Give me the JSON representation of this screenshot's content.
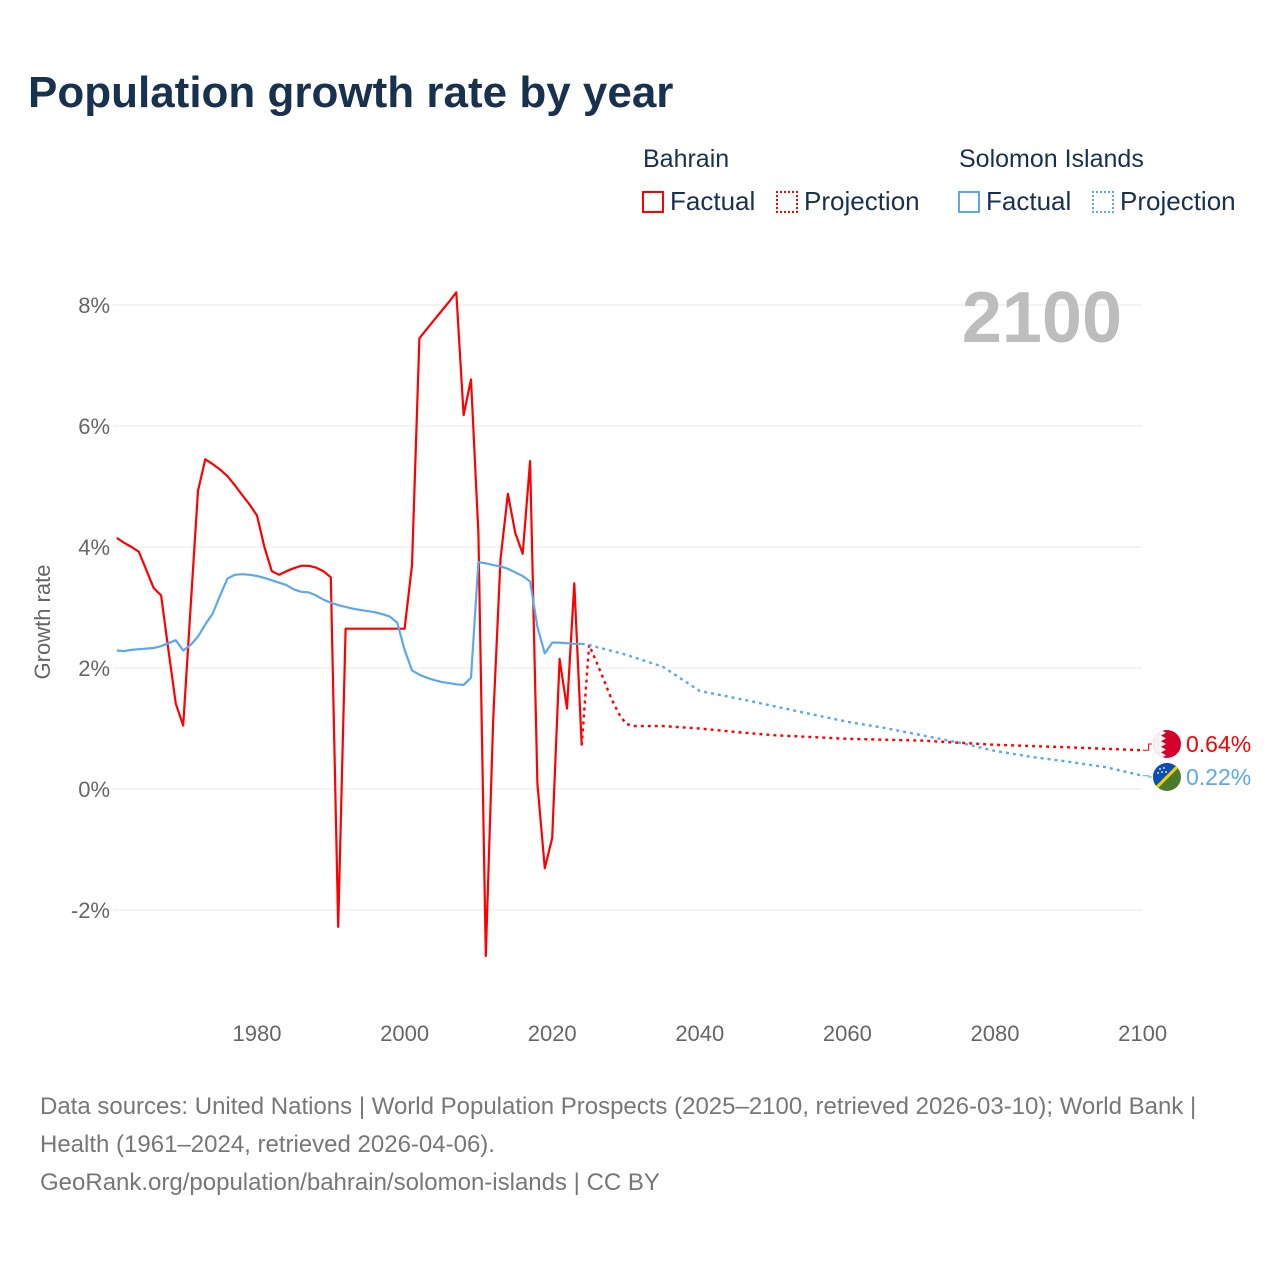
{
  "title": "Population growth rate by year",
  "legend": {
    "groups": [
      {
        "name": "Bahrain",
        "factual": "Factual",
        "projection": "Projection",
        "color": "#ff0000"
      },
      {
        "name": "Solomon Islands",
        "factual": "Factual",
        "projection": "Projection",
        "color": "#5ba8ec"
      }
    ]
  },
  "year_watermark": "2100",
  "footer": {
    "sources": "Data sources: United Nations | World Population Prospects (2025–2100, retrieved 2026-03-10); World Bank | Health (1961–2024, retrieved 2026-04-06).",
    "credit": "GeoRank.org/population/bahrain/solomon-islands | CC BY"
  },
  "chart_data": {
    "type": "line",
    "title": "Population growth rate by year",
    "ylabel": "Growth rate",
    "xlabel": "",
    "xlim": [
      1961,
      2100
    ],
    "ylim": [
      -3.3,
      8.5
    ],
    "x_ticks": [
      1980,
      2000,
      2020,
      2040,
      2060,
      2080,
      2100
    ],
    "y_ticks": [
      {
        "v": 8,
        "label": "8%"
      },
      {
        "v": 6,
        "label": "6%"
      },
      {
        "v": 4,
        "label": "4%"
      },
      {
        "v": 2,
        "label": "2%"
      },
      {
        "v": 0,
        "label": "0%"
      },
      {
        "v": -2,
        "label": "-2%"
      }
    ],
    "grid": true,
    "series": [
      {
        "name": "Bahrain",
        "color": "#ff0000",
        "end_label": "0.64%",
        "factual": [
          [
            1961,
            4.15
          ],
          [
            1962,
            4.07
          ],
          [
            1963,
            4.0
          ],
          [
            1964,
            3.92
          ],
          [
            1965,
            3.62
          ],
          [
            1966,
            3.32
          ],
          [
            1967,
            3.2
          ],
          [
            1968,
            2.3
          ],
          [
            1969,
            1.41
          ],
          [
            1970,
            1.05
          ],
          [
            1971,
            3.0
          ],
          [
            1972,
            4.93
          ],
          [
            1973,
            5.45
          ],
          [
            1974,
            5.37
          ],
          [
            1975,
            5.28
          ],
          [
            1976,
            5.17
          ],
          [
            1977,
            5.02
          ],
          [
            1978,
            4.86
          ],
          [
            1979,
            4.7
          ],
          [
            1980,
            4.52
          ],
          [
            1981,
            4.0
          ],
          [
            1982,
            3.6
          ],
          [
            1983,
            3.54
          ],
          [
            1984,
            3.6
          ],
          [
            1985,
            3.65
          ],
          [
            1986,
            3.69
          ],
          [
            1987,
            3.69
          ],
          [
            1988,
            3.66
          ],
          [
            1989,
            3.6
          ],
          [
            1990,
            3.5
          ],
          [
            1991,
            -2.28
          ],
          [
            1992,
            2.65
          ],
          [
            1993,
            2.65
          ],
          [
            1994,
            2.65
          ],
          [
            1995,
            2.65
          ],
          [
            1996,
            2.65
          ],
          [
            1997,
            2.65
          ],
          [
            1998,
            2.65
          ],
          [
            1999,
            2.65
          ],
          [
            2000,
            2.65
          ],
          [
            2001,
            3.7
          ],
          [
            2002,
            7.45
          ],
          [
            2003,
            7.6
          ],
          [
            2004,
            7.75
          ],
          [
            2005,
            7.9
          ],
          [
            2006,
            8.05
          ],
          [
            2007,
            8.21
          ],
          [
            2008,
            6.18
          ],
          [
            2009,
            6.77
          ],
          [
            2010,
            4.23
          ],
          [
            2011,
            -2.76
          ],
          [
            2012,
            1.14
          ],
          [
            2013,
            3.8
          ],
          [
            2014,
            4.88
          ],
          [
            2015,
            4.23
          ],
          [
            2016,
            3.89
          ],
          [
            2017,
            5.42
          ],
          [
            2018,
            0.09
          ],
          [
            2019,
            -1.31
          ],
          [
            2020,
            -0.81
          ],
          [
            2021,
            2.15
          ],
          [
            2022,
            1.33
          ],
          [
            2023,
            3.4
          ],
          [
            2024,
            0.72
          ]
        ],
        "projection": [
          [
            2024,
            0.72
          ],
          [
            2025,
            2.38
          ],
          [
            2026,
            2.1
          ],
          [
            2027,
            1.8
          ],
          [
            2028,
            1.5
          ],
          [
            2029,
            1.25
          ],
          [
            2030,
            1.08
          ],
          [
            2031,
            1.04
          ],
          [
            2035,
            1.04
          ],
          [
            2040,
            1.0
          ],
          [
            2045,
            0.94
          ],
          [
            2050,
            0.89
          ],
          [
            2055,
            0.86
          ],
          [
            2060,
            0.83
          ],
          [
            2070,
            0.8
          ],
          [
            2080,
            0.73
          ],
          [
            2090,
            0.69
          ],
          [
            2100,
            0.64
          ]
        ]
      },
      {
        "name": "Solomon Islands",
        "color": "#5ba8ec",
        "end_label": "0.22%",
        "factual": [
          [
            1961,
            2.29
          ],
          [
            1962,
            2.28
          ],
          [
            1963,
            2.3
          ],
          [
            1964,
            2.31
          ],
          [
            1965,
            2.32
          ],
          [
            1966,
            2.33
          ],
          [
            1967,
            2.36
          ],
          [
            1968,
            2.41
          ],
          [
            1969,
            2.46
          ],
          [
            1970,
            2.29
          ],
          [
            1971,
            2.38
          ],
          [
            1972,
            2.52
          ],
          [
            1973,
            2.72
          ],
          [
            1974,
            2.9
          ],
          [
            1975,
            3.2
          ],
          [
            1976,
            3.48
          ],
          [
            1977,
            3.54
          ],
          [
            1978,
            3.55
          ],
          [
            1979,
            3.54
          ],
          [
            1980,
            3.52
          ],
          [
            1981,
            3.49
          ],
          [
            1982,
            3.45
          ],
          [
            1983,
            3.41
          ],
          [
            1984,
            3.37
          ],
          [
            1985,
            3.3
          ],
          [
            1986,
            3.26
          ],
          [
            1987,
            3.25
          ],
          [
            1988,
            3.2
          ],
          [
            1989,
            3.13
          ],
          [
            1990,
            3.08
          ],
          [
            1991,
            3.04
          ],
          [
            1992,
            3.01
          ],
          [
            1993,
            2.98
          ],
          [
            1994,
            2.96
          ],
          [
            1995,
            2.94
          ],
          [
            1996,
            2.92
          ],
          [
            1997,
            2.89
          ],
          [
            1998,
            2.85
          ],
          [
            1999,
            2.75
          ],
          [
            2000,
            2.3
          ],
          [
            2001,
            1.96
          ],
          [
            2002,
            1.89
          ],
          [
            2003,
            1.84
          ],
          [
            2004,
            1.8
          ],
          [
            2005,
            1.77
          ],
          [
            2006,
            1.75
          ],
          [
            2007,
            1.73
          ],
          [
            2008,
            1.72
          ],
          [
            2009,
            1.84
          ],
          [
            2010,
            3.75
          ],
          [
            2011,
            3.73
          ],
          [
            2012,
            3.7
          ],
          [
            2013,
            3.68
          ],
          [
            2014,
            3.64
          ],
          [
            2015,
            3.58
          ],
          [
            2016,
            3.52
          ],
          [
            2017,
            3.43
          ],
          [
            2018,
            2.68
          ],
          [
            2019,
            2.24
          ],
          [
            2020,
            2.42
          ],
          [
            2021,
            2.42
          ],
          [
            2022,
            2.41
          ],
          [
            2023,
            2.4
          ],
          [
            2024,
            2.4
          ]
        ],
        "projection": [
          [
            2024,
            2.4
          ],
          [
            2025,
            2.38
          ],
          [
            2030,
            2.22
          ],
          [
            2035,
            2.02
          ],
          [
            2040,
            1.62
          ],
          [
            2045,
            1.5
          ],
          [
            2050,
            1.37
          ],
          [
            2055,
            1.24
          ],
          [
            2060,
            1.11
          ],
          [
            2065,
            1.01
          ],
          [
            2070,
            0.89
          ],
          [
            2075,
            0.77
          ],
          [
            2080,
            0.63
          ],
          [
            2085,
            0.53
          ],
          [
            2090,
            0.45
          ],
          [
            2095,
            0.36
          ],
          [
            2100,
            0.22
          ]
        ]
      }
    ]
  }
}
